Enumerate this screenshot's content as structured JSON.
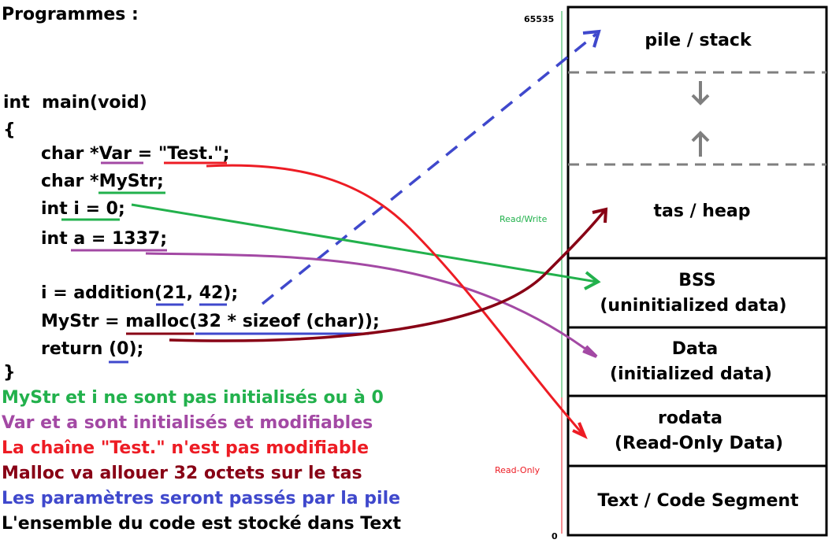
{
  "title": "Programmes :",
  "code": {
    "line1": "int  main(void)",
    "line2": "{",
    "line3": "char *Var = \"Test.\";",
    "line4": "char *MyStr;",
    "line5": "int i = 0;",
    "line6": "int a = 1337;",
    "line7": "i = addition(21, 42);",
    "line8": "MyStr = malloc(32 * sizeof (char));",
    "line9": "return (0);",
    "line10": "}"
  },
  "notes": [
    {
      "text": "MyStr et i ne sont pas initialisés ou à 0",
      "color": "#22b14c"
    },
    {
      "text": "Var et a sont initialisés et modifiables",
      "color": "#a349a4"
    },
    {
      "text": "La chaîne \"Test.\" n'est pas modifiable",
      "color": "#ed1c24"
    },
    {
      "text": "Malloc va allouer 32 octets sur le tas",
      "color": "#880015"
    },
    {
      "text": "Les paramètres seront passés par la pile",
      "color": "#3f48cc"
    },
    {
      "text": "L'ensemble du code est stocké dans Text",
      "color": "#000000"
    }
  ],
  "axis": {
    "top": "65535",
    "bottom": "0",
    "rw": "Read/Write",
    "ro": "Read-Only",
    "rw_color": "#22b14c",
    "ro_color": "#ed1c24"
  },
  "memory": {
    "stack": "pile / stack",
    "heap": "tas / heap",
    "bss1": "BSS",
    "bss2": "(uninitialized data)",
    "data1": "Data",
    "data2": "(initialized data)",
    "rodata1": "rodata",
    "rodata2": "(Read-Only Data)",
    "text": "Text / Code Segment"
  },
  "colors": {
    "green": "#22b14c",
    "purple": "#a349a4",
    "red": "#ed1c24",
    "darkred": "#880015",
    "blue": "#3f48cc",
    "gray": "#7f7f7f"
  }
}
